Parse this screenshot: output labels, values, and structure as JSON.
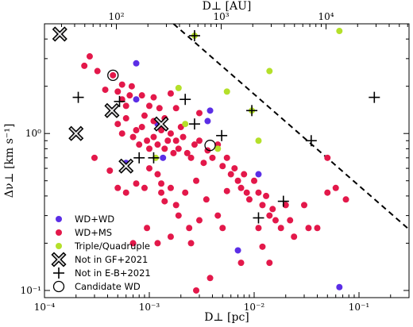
{
  "chart_data": {
    "type": "scatter",
    "xlabel": "D⊥ [pc]",
    "ylabel": "Δν⊥ [km s⁻¹]",
    "top_xlabel": "D⊥ [AU]",
    "xscale": "log",
    "yscale": "log",
    "xlim": [
      0.0001,
      0.3
    ],
    "ylim": [
      0.09,
      5.0
    ],
    "xticks": [
      {
        "value": 0.0001,
        "label": "10⁻⁴"
      },
      {
        "value": 0.001,
        "label": "10⁻³"
      },
      {
        "value": 0.01,
        "label": "10⁻²"
      },
      {
        "value": 0.1,
        "label": "10⁻¹"
      }
    ],
    "yticks": [
      {
        "value": 0.1,
        "label": "10⁻¹"
      },
      {
        "value": 1,
        "label": "10⁰"
      }
    ],
    "top_xticks": [
      {
        "value_au": 100,
        "label": "10²"
      },
      {
        "value_au": 1000,
        "label": "10³"
      },
      {
        "value_au": 10000,
        "label": "10⁴"
      }
    ],
    "au_per_pc": 206265,
    "legend_position": "lower-left",
    "colors": {
      "wd_wd": "#5b2ee6",
      "wd_ms": "#e3184a",
      "triple": "#b4e02a"
    },
    "legend": [
      {
        "key": "wd_wd",
        "label": "WD+WD",
        "marker": "dot"
      },
      {
        "key": "wd_ms",
        "label": "WD+MS",
        "marker": "dot"
      },
      {
        "key": "triple",
        "label": "Triple/Quadruple",
        "marker": "dot"
      },
      {
        "key": "not_gf",
        "label": "Not in GF+2021",
        "marker": "x"
      },
      {
        "key": "not_eb",
        "label": "Not in E-B+2021",
        "marker": "plus"
      },
      {
        "key": "cand",
        "label": "Candidate WD",
        "marker": "circle"
      }
    ],
    "dashed_line": {
      "from": [
        0.0017,
        5.0
      ],
      "to": [
        0.3,
        0.245
      ]
    },
    "series": [
      {
        "name": "WD+WD",
        "key": "wd_wd",
        "points": [
          [
            0.00014,
            4.3
          ],
          [
            0.0002,
            1.0
          ],
          [
            0.00044,
            1.4
          ],
          [
            0.0006,
            0.65
          ],
          [
            0.00075,
            2.8
          ],
          [
            0.00075,
            1.65
          ],
          [
            0.0012,
            1.15
          ],
          [
            0.00135,
            0.7
          ],
          [
            0.0036,
            1.2
          ],
          [
            0.0038,
            1.4
          ],
          [
            0.011,
            0.55
          ],
          [
            0.007,
            0.18
          ],
          [
            0.065,
            0.105
          ]
        ]
      },
      {
        "name": "WD+MS",
        "key": "wd_ms",
        "points": [
          [
            0.00024,
            2.7
          ],
          [
            0.00027,
            3.1
          ],
          [
            0.00032,
            2.5
          ],
          [
            0.00038,
            1.9
          ],
          [
            0.00045,
            2.35
          ],
          [
            0.0005,
            1.85
          ],
          [
            0.00055,
            1.65
          ],
          [
            0.00055,
            2.05
          ],
          [
            0.0006,
            1.5
          ],
          [
            0.00065,
            1.75
          ],
          [
            0.00068,
            2.0
          ],
          [
            0.00085,
            1.75
          ],
          [
            0.0009,
            1.3
          ],
          [
            0.001,
            1.5
          ],
          [
            0.0011,
            1.7
          ],
          [
            0.0011,
            1.2
          ],
          [
            0.00125,
            1.45
          ],
          [
            0.0014,
            1.25
          ],
          [
            0.0016,
            1.8
          ],
          [
            0.0018,
            1.45
          ],
          [
            0.0005,
            1.15
          ],
          [
            0.00055,
            1.0
          ],
          [
            0.0006,
            1.25
          ],
          [
            0.0007,
            0.95
          ],
          [
            0.00075,
            1.05
          ],
          [
            0.0008,
            0.85
          ],
          [
            0.00085,
            1.1
          ],
          [
            0.00095,
            0.9
          ],
          [
            0.001,
            0.8
          ],
          [
            0.0011,
            0.95
          ],
          [
            0.0012,
            0.85
          ],
          [
            0.0013,
            1.05
          ],
          [
            0.0014,
            0.8
          ],
          [
            0.0015,
            0.9
          ],
          [
            0.0016,
            1.0
          ],
          [
            0.0017,
            0.75
          ],
          [
            0.0018,
            0.9
          ],
          [
            0.0019,
            0.8
          ],
          [
            0.002,
            1.1
          ],
          [
            0.0021,
            0.95
          ],
          [
            0.0023,
            0.75
          ],
          [
            0.0025,
            0.7
          ],
          [
            0.0027,
            0.85
          ],
          [
            0.003,
            0.9
          ],
          [
            0.0033,
            0.65
          ],
          [
            0.0036,
            0.78
          ],
          [
            0.004,
            0.7
          ],
          [
            0.0045,
            0.85
          ],
          [
            0.005,
            0.62
          ],
          [
            0.0055,
            0.7
          ],
          [
            0.006,
            0.55
          ],
          [
            0.0065,
            0.6
          ],
          [
            0.007,
            0.5
          ],
          [
            0.0075,
            0.45
          ],
          [
            0.008,
            0.55
          ],
          [
            0.0085,
            0.42
          ],
          [
            0.009,
            0.38
          ],
          [
            0.01,
            0.5
          ],
          [
            0.011,
            0.42
          ],
          [
            0.012,
            0.35
          ],
          [
            0.013,
            0.4
          ],
          [
            0.014,
            0.3
          ],
          [
            0.015,
            0.33
          ],
          [
            0.016,
            0.28
          ],
          [
            0.018,
            0.25
          ],
          [
            0.02,
            0.35
          ],
          [
            0.022,
            0.28
          ],
          [
            0.024,
            0.22
          ],
          [
            0.03,
            0.35
          ],
          [
            0.033,
            0.25
          ],
          [
            0.04,
            0.25
          ],
          [
            0.05,
            0.42
          ],
          [
            0.05,
            0.7
          ],
          [
            0.06,
            0.45
          ],
          [
            0.075,
            0.38
          ],
          [
            0.0003,
            0.7
          ],
          [
            0.00042,
            0.58
          ],
          [
            0.0005,
            0.45
          ],
          [
            0.0006,
            0.42
          ],
          [
            0.00075,
            0.48
          ],
          [
            0.0009,
            0.45
          ],
          [
            0.001,
            0.6
          ],
          [
            0.0012,
            0.55
          ],
          [
            0.0013,
            0.42
          ],
          [
            0.0014,
            0.37
          ],
          [
            0.0016,
            0.45
          ],
          [
            0.0018,
            0.35
          ],
          [
            0.0019,
            0.3
          ],
          [
            0.0022,
            0.42
          ],
          [
            0.0024,
            0.25
          ],
          [
            0.0028,
            0.5
          ],
          [
            0.003,
            0.28
          ],
          [
            0.0035,
            0.38
          ],
          [
            0.0045,
            0.3
          ],
          [
            0.005,
            0.25
          ],
          [
            0.0055,
            0.43
          ],
          [
            0.0007,
            0.2
          ],
          [
            0.00095,
            0.25
          ],
          [
            0.0012,
            0.2
          ],
          [
            0.0016,
            0.22
          ],
          [
            0.0025,
            0.2
          ],
          [
            0.0028,
            0.1
          ],
          [
            0.0038,
            0.12
          ],
          [
            0.0075,
            0.15
          ],
          [
            0.012,
            0.19
          ],
          [
            0.014,
            0.15
          ],
          [
            0.011,
            0.25
          ],
          [
            0.0013,
            0.48
          ],
          [
            0.003,
            1.35
          ]
        ]
      },
      {
        "name": "Triple/Quadruple",
        "key": "triple",
        "points": [
          [
            0.0019,
            1.95
          ],
          [
            0.0027,
            4.2
          ],
          [
            0.0055,
            1.85
          ],
          [
            0.014,
            2.5
          ],
          [
            0.0095,
            1.4
          ],
          [
            0.0045,
            0.8
          ],
          [
            0.011,
            0.9
          ],
          [
            0.0022,
            1.15
          ],
          [
            0.00115,
            0.7
          ],
          [
            0.065,
            4.5
          ]
        ]
      }
    ],
    "markers": {
      "not_gf": [
        [
          0.00014,
          4.3
        ],
        [
          0.0002,
          1.0
        ],
        [
          0.00044,
          1.4
        ],
        [
          0.0006,
          0.62
        ],
        [
          0.0013,
          1.15
        ]
      ],
      "not_eb": [
        [
          0.00021,
          1.7
        ],
        [
          0.00052,
          1.6
        ],
        [
          0.0011,
          0.7
        ],
        [
          0.0022,
          1.65
        ],
        [
          0.0027,
          1.15
        ],
        [
          0.0027,
          4.2
        ],
        [
          0.0049,
          0.97
        ],
        [
          0.0095,
          1.4
        ],
        [
          0.019,
          0.37
        ],
        [
          0.011,
          0.29
        ],
        [
          0.035,
          0.9
        ],
        [
          0.14,
          1.7
        ],
        [
          0.0008,
          0.7
        ]
      ],
      "cand": [
        [
          0.00045,
          2.35
        ],
        [
          0.0038,
          0.84
        ]
      ]
    }
  }
}
